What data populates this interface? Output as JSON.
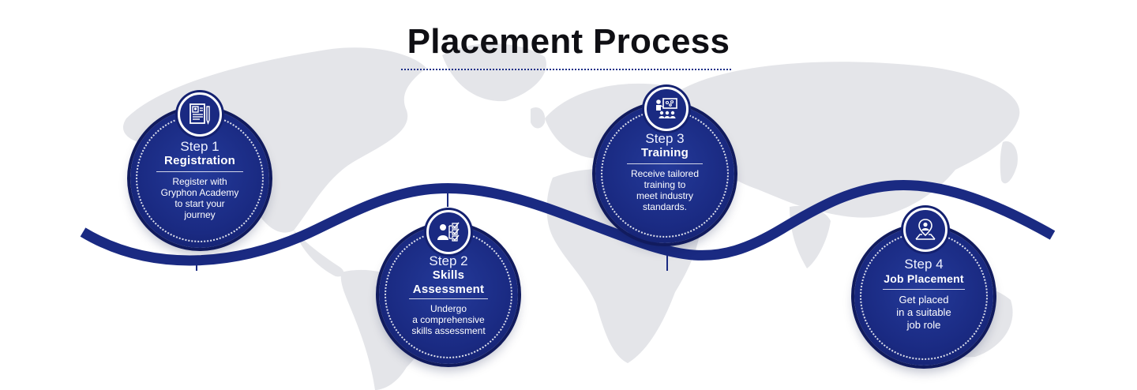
{
  "title": "Placement Process",
  "colors": {
    "navy": "#1a2a82",
    "navy_dark": "#111d62",
    "map_gray": "#e4e5e9",
    "title_text": "#0f0f14"
  },
  "steps": [
    {
      "number": "Step 1",
      "name": "Registration",
      "description": [
        "Register with",
        "Gryphon Academy",
        "to start your",
        "journey"
      ],
      "icon": "resume-document-icon"
    },
    {
      "number": "Step 2",
      "name_lines": [
        "Skills",
        "Assessment"
      ],
      "description": [
        "Undergo",
        "a comprehensive",
        "skills assessment"
      ],
      "icon": "assessment-checklist-icon"
    },
    {
      "number": "Step 3",
      "name": "Training",
      "description": [
        "Receive tailored",
        "training to",
        "meet industry",
        "standards."
      ],
      "icon": "presenter-training-icon"
    },
    {
      "number": "Step 4",
      "name": "Job Placement",
      "description": [
        "Get placed",
        "in a suitable",
        "job role"
      ],
      "icon": "location-person-icon"
    }
  ]
}
